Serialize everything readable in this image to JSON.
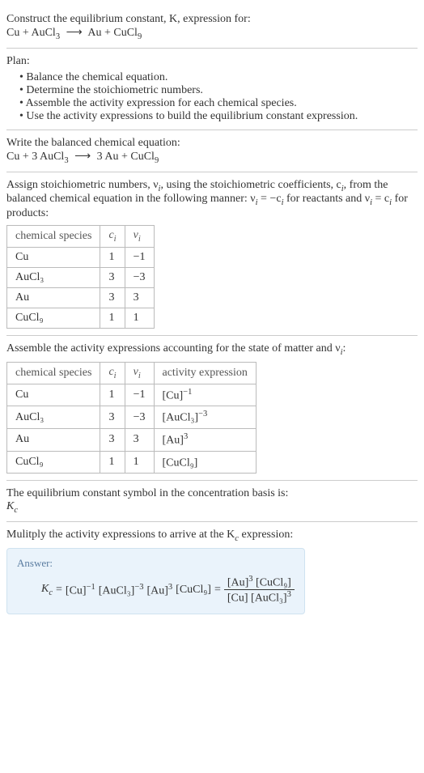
{
  "title_line1": "Construct the equilibrium constant, K, expression for:",
  "title_eq_lhs": "Cu + AuCl",
  "title_eq_lhs_sub": "3",
  "title_eq_rhs": "Au + CuCl",
  "title_eq_rhs_sub": "9",
  "arrow": "⟶",
  "plan_header": "Plan:",
  "plan_items": [
    "Balance the chemical equation.",
    "Determine the stoichiometric numbers.",
    "Assemble the activity expression for each chemical species.",
    "Use the activity expressions to build the equilibrium constant expression."
  ],
  "balanced_header": "Write the balanced chemical equation:",
  "balanced_lhs": "Cu + 3 AuCl",
  "balanced_lhs_sub": "3",
  "balanced_rhs": "3 Au + CuCl",
  "balanced_rhs_sub": "9",
  "stoich_text_1": "Assign stoichiometric numbers, ν",
  "stoich_text_1_sub": "i",
  "stoich_text_2": ", using the stoichiometric coefficients, c",
  "stoich_text_2_sub": "i",
  "stoich_text_3": ", from the balanced chemical equation in the following manner: ν",
  "stoich_text_3b": " = −c",
  "stoich_text_4": " for reactants and ν",
  "stoich_text_4b": " = c",
  "stoich_text_5": " for products:",
  "table1": {
    "headers": [
      "chemical species",
      "cᵢ",
      "νᵢ"
    ],
    "rows": [
      [
        "Cu",
        "1",
        "−1"
      ],
      [
        "AuCl₃",
        "3",
        "−3"
      ],
      [
        "Au",
        "3",
        "3"
      ],
      [
        "CuCl₉",
        "1",
        "1"
      ]
    ]
  },
  "activity_header_1": "Assemble the activity expressions accounting for the state of matter and ν",
  "activity_header_sub": "i",
  "activity_header_2": ":",
  "table2": {
    "headers": [
      "chemical species",
      "cᵢ",
      "νᵢ",
      "activity expression"
    ],
    "rows": [
      {
        "species": "Cu",
        "c": "1",
        "v": "−1",
        "expr": "[Cu]",
        "sup": "−1"
      },
      {
        "species": "AuCl₃",
        "c": "3",
        "v": "−3",
        "expr": "[AuCl₃]",
        "sup": "−3"
      },
      {
        "species": "Au",
        "c": "3",
        "v": "3",
        "expr": "[Au]",
        "sup": "3"
      },
      {
        "species": "CuCl₉",
        "c": "1",
        "v": "1",
        "expr": "[CuCl₉]",
        "sup": ""
      }
    ]
  },
  "kc_symbol_text": "The equilibrium constant symbol in the concentration basis is:",
  "kc_symbol": "K",
  "kc_symbol_sub": "c",
  "multiply_text_1": "Mulitply the activity expressions to arrive at the K",
  "multiply_text_sub": "c",
  "multiply_text_2": " expression:",
  "answer_label": "Answer:",
  "answer": {
    "lhs": "K",
    "lhs_sub": "c",
    "eq": " = ",
    "t1": "[Cu]",
    "t1_sup": "−1",
    "t2": "[AuCl₃]",
    "t2_sup": "−3",
    "t3": "[Au]",
    "t3_sup": "3",
    "t4": "[CuCl₉]",
    "eq2": " = ",
    "num1": "[Au]",
    "num1_sup": "3",
    "num2": "[CuCl₉]",
    "den1": "[Cu]",
    "den2": "[AuCl₃]",
    "den2_sup": "3"
  }
}
